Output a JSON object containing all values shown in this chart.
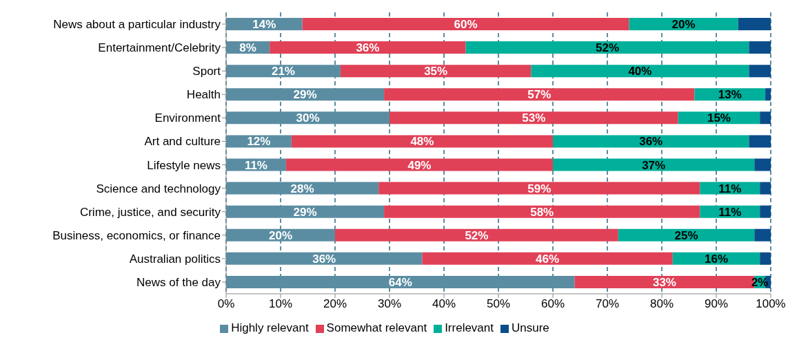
{
  "chart_data": {
    "type": "bar",
    "orientation": "horizontal",
    "stacked": true,
    "categories": [
      "News about a particular industry",
      "Entertainment/Celebrity",
      "Sport",
      "Health",
      "Environment",
      "Art and culture",
      "Lifestyle news",
      "Science and technology",
      "Crime, justice, and security",
      "Business, economics, or finance",
      "Australian politics",
      "News of the day"
    ],
    "series": [
      {
        "name": "Highly relevant",
        "color": "#5b8da2",
        "values": [
          14,
          8,
          21,
          29,
          30,
          12,
          11,
          28,
          29,
          20,
          36,
          64
        ],
        "value_labels": [
          "14%",
          "8%",
          "21%",
          "29%",
          "30%",
          "12%",
          "11%",
          "28%",
          "29%",
          "20%",
          "36%",
          "64%"
        ]
      },
      {
        "name": "Somewhat relevant",
        "color": "#e04157",
        "values": [
          60,
          36,
          35,
          57,
          53,
          48,
          49,
          59,
          58,
          52,
          46,
          33
        ],
        "value_labels": [
          "60%",
          "36%",
          "35%",
          "57%",
          "53%",
          "48%",
          "49%",
          "59%",
          "58%",
          "52%",
          "46%",
          "33%"
        ]
      },
      {
        "name": "Irrelevant",
        "color": "#00b09a",
        "values": [
          20,
          52,
          40,
          13,
          15,
          36,
          37,
          11,
          11,
          25,
          16,
          2
        ],
        "value_labels": [
          "20%",
          "52%",
          "40%",
          "13%",
          "15%",
          "36%",
          "37%",
          "11%",
          "11%",
          "25%",
          "16%",
          "2%"
        ]
      },
      {
        "name": "Unsure",
        "color": "#0b4d8a",
        "values": [
          6,
          4,
          4,
          1,
          2,
          4,
          3,
          2,
          2,
          3,
          2,
          1
        ]
      }
    ],
    "xlim": [
      0,
      100
    ],
    "xticks": [
      {
        "value": 0,
        "label": "0%"
      },
      {
        "value": 10,
        "label": "10%"
      },
      {
        "value": 20,
        "label": "20%"
      },
      {
        "value": 30,
        "label": "30%"
      },
      {
        "value": 40,
        "label": "40%"
      },
      {
        "value": 50,
        "label": "50%"
      },
      {
        "value": 60,
        "label": "60%"
      },
      {
        "value": 70,
        "label": "70%"
      },
      {
        "value": 80,
        "label": "80%"
      },
      {
        "value": 90,
        "label": "90%"
      },
      {
        "value": 100,
        "label": "100%"
      }
    ],
    "grid": "x",
    "legend": "bottom"
  }
}
